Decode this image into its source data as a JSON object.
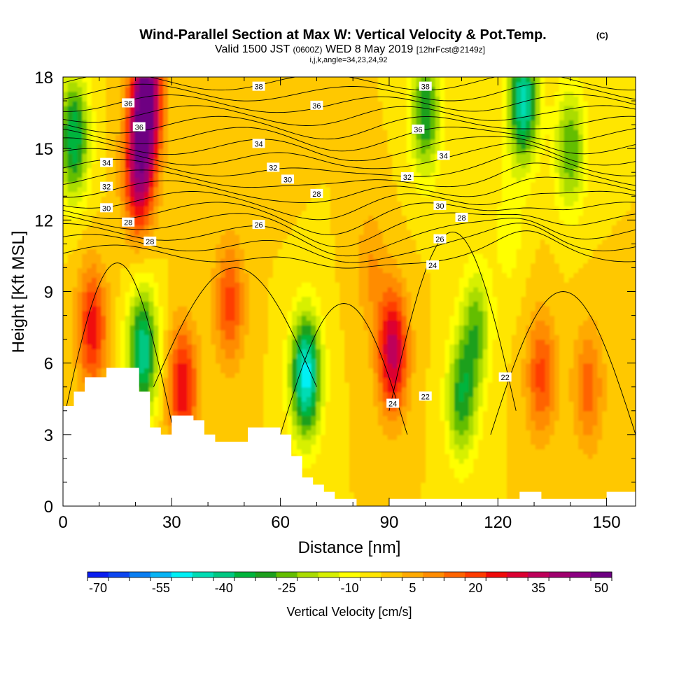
{
  "header": {
    "title": "Wind-Parallel Section at Max W: Vertical Velocity & Pot.Temp.",
    "copyright": "(C)",
    "valid_prefix": "Valid 1500 JST",
    "valid_zulu": "(0600Z)",
    "valid_date": "WED 8 May 2019",
    "forecast": "[12hrFcst@2149z]",
    "grid_info": "i,j,k,angle=34,23,24,92"
  },
  "chart_data": {
    "type": "heatmap",
    "xlabel": "Distance [nm]",
    "ylabel": "Height [Kft MSL]",
    "xlim": [
      0,
      158
    ],
    "ylim": [
      0,
      18
    ],
    "x_ticks": [
      0,
      30,
      60,
      90,
      120,
      150
    ],
    "y_ticks": [
      0,
      3,
      6,
      9,
      12,
      15,
      18
    ],
    "colorbar": {
      "label": "Vertical Velocity [cm/s]",
      "min": -70,
      "max": 55,
      "step": 5,
      "tick_labels": [
        -70,
        -55,
        -40,
        -25,
        -10,
        5,
        20,
        35,
        50
      ],
      "colors": [
        "#0a1ef0",
        "#0d46f0",
        "#0a7ef2",
        "#07b4f5",
        "#00f0f5",
        "#00dcb4",
        "#00c882",
        "#00b43c",
        "#1ea01e",
        "#64be00",
        "#aadc00",
        "#d7f000",
        "#ffff00",
        "#ffe600",
        "#ffc800",
        "#ffaa00",
        "#ff8c00",
        "#ff6400",
        "#ff3c00",
        "#f00a0a",
        "#dc0032",
        "#be005a",
        "#a0006e",
        "#8c0082",
        "#6e0082"
      ]
    },
    "updraft_cores": [
      {
        "x": 23,
        "y": 17.2,
        "w": 55
      },
      {
        "x": 21,
        "y": 14.0,
        "w": 40
      },
      {
        "x": 8,
        "y": 7.5,
        "w": 28
      },
      {
        "x": 33,
        "y": 5.0,
        "w": 30
      },
      {
        "x": 46,
        "y": 8.5,
        "w": 22
      },
      {
        "x": 91,
        "y": 6.5,
        "w": 38
      },
      {
        "x": 132,
        "y": 5.5,
        "w": 22
      },
      {
        "x": 145,
        "y": 5.0,
        "w": 18
      },
      {
        "x": 60,
        "y": 16.5,
        "w": 5
      },
      {
        "x": 85,
        "y": 10.0,
        "w": 10
      }
    ],
    "downdraft_cores": [
      {
        "x": 67,
        "y": 5.5,
        "w": -48
      },
      {
        "x": 22,
        "y": 6.5,
        "w": -40
      },
      {
        "x": 3,
        "y": 15.5,
        "w": -35
      },
      {
        "x": 100,
        "y": 16.5,
        "w": -30
      },
      {
        "x": 127,
        "y": 17.0,
        "w": -42
      },
      {
        "x": 140,
        "y": 15.0,
        "w": -25
      },
      {
        "x": 110,
        "y": 4.5,
        "w": -28
      },
      {
        "x": 114,
        "y": 7.5,
        "w": -22
      },
      {
        "x": 123,
        "y": 11.5,
        "w": -8
      }
    ],
    "terrain_profile": [
      [
        0,
        4.2
      ],
      [
        3,
        4.2
      ],
      [
        3,
        4.8
      ],
      [
        6,
        4.8
      ],
      [
        6,
        5.4
      ],
      [
        12,
        5.4
      ],
      [
        12,
        5.8
      ],
      [
        21,
        5.8
      ],
      [
        21,
        4.8
      ],
      [
        24,
        4.8
      ],
      [
        24,
        3.3
      ],
      [
        27,
        3.3
      ],
      [
        27,
        3.0
      ],
      [
        30,
        3.0
      ],
      [
        30,
        3.8
      ],
      [
        36,
        3.8
      ],
      [
        36,
        3.6
      ],
      [
        39,
        3.6
      ],
      [
        39,
        3.0
      ],
      [
        42,
        3.0
      ],
      [
        42,
        2.7
      ],
      [
        51,
        2.7
      ],
      [
        51,
        3.3
      ],
      [
        60,
        3.3
      ],
      [
        60,
        3.0
      ],
      [
        63,
        3.0
      ],
      [
        63,
        2.1
      ],
      [
        66,
        2.1
      ],
      [
        66,
        1.2
      ],
      [
        69,
        1.2
      ],
      [
        69,
        0.9
      ],
      [
        72,
        0.9
      ],
      [
        72,
        0.6
      ],
      [
        75,
        0.6
      ],
      [
        75,
        0.3
      ],
      [
        81,
        0.3
      ],
      [
        81,
        0.0
      ],
      [
        90,
        0.0
      ],
      [
        90,
        0.3
      ],
      [
        126,
        0.3
      ],
      [
        126,
        0.6
      ],
      [
        132,
        0.6
      ],
      [
        132,
        0.3
      ],
      [
        150,
        0.3
      ],
      [
        150,
        0.6
      ],
      [
        158,
        0.6
      ]
    ],
    "isentrope_labels": [
      {
        "text": "38",
        "x": 54,
        "y": 17.6
      },
      {
        "text": "38",
        "x": 100,
        "y": 17.6
      },
      {
        "text": "36",
        "x": 18,
        "y": 16.9
      },
      {
        "text": "36",
        "x": 21,
        "y": 15.9
      },
      {
        "text": "36",
        "x": 70,
        "y": 16.8
      },
      {
        "text": "36",
        "x": 98,
        "y": 15.8
      },
      {
        "text": "34",
        "x": 12,
        "y": 14.4
      },
      {
        "text": "34",
        "x": 54,
        "y": 15.2
      },
      {
        "text": "34",
        "x": 105,
        "y": 14.7
      },
      {
        "text": "32",
        "x": 12,
        "y": 13.4
      },
      {
        "text": "32",
        "x": 58,
        "y": 14.2
      },
      {
        "text": "32",
        "x": 95,
        "y": 13.8
      },
      {
        "text": "30",
        "x": 12,
        "y": 12.5
      },
      {
        "text": "30",
        "x": 62,
        "y": 13.7
      },
      {
        "text": "30",
        "x": 104,
        "y": 12.6
      },
      {
        "text": "28",
        "x": 18,
        "y": 11.9
      },
      {
        "text": "28",
        "x": 70,
        "y": 13.1
      },
      {
        "text": "28",
        "x": 110,
        "y": 12.1
      },
      {
        "text": "28",
        "x": 24,
        "y": 11.1
      },
      {
        "text": "26",
        "x": 54,
        "y": 11.8
      },
      {
        "text": "26",
        "x": 104,
        "y": 11.2
      },
      {
        "text": "24",
        "x": 102,
        "y": 10.1
      },
      {
        "text": "24",
        "x": 91,
        "y": 4.3
      },
      {
        "text": "22",
        "x": 100,
        "y": 4.6
      },
      {
        "text": "22",
        "x": 122,
        "y": 5.4
      }
    ]
  }
}
